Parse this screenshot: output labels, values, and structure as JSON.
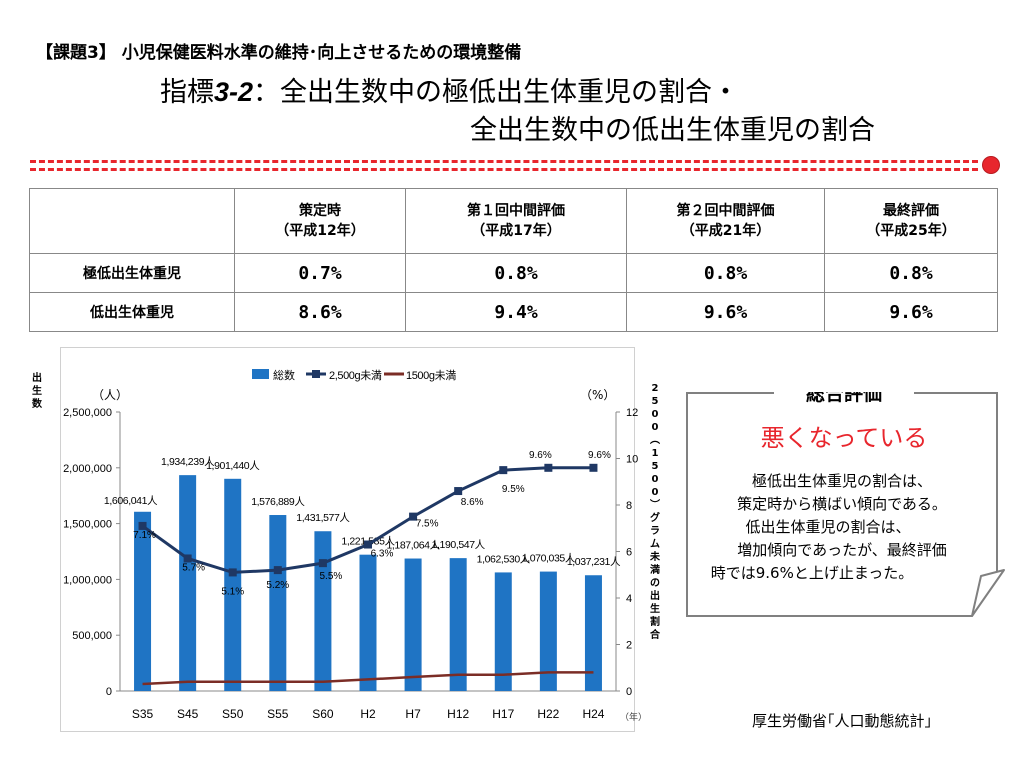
{
  "header": {
    "subtitle": "【課題3】 小児保健医料水準の維持･向上させるための環境整備",
    "title_prefix": "指標",
    "title_num": "3-2",
    "title_rest": "：全出生数中の極低出生体重児の割合・",
    "title_line2": "全出生数中の低出生体重児の割合"
  },
  "table": {
    "headers": [
      {
        "line1": "策定時",
        "line2": "（平成12年）"
      },
      {
        "line1": "第１回中間評価",
        "line2": "（平成17年）"
      },
      {
        "line1": "第２回中間評価",
        "line2": "（平成21年）"
      },
      {
        "line1": "最終評価",
        "line2": "（平成25年）"
      }
    ],
    "rows": [
      {
        "label": "極低出生体重児",
        "values": [
          "0.7%",
          "0.8%",
          "0.8%",
          "0.8%"
        ]
      },
      {
        "label": "低出生体重児",
        "values": [
          "8.6%",
          "9.4%",
          "9.6%",
          "9.6%"
        ]
      }
    ]
  },
  "chart_data": {
    "type": "bar",
    "categories": [
      "S35",
      "S45",
      "S50",
      "S55",
      "S60",
      "H2",
      "H7",
      "H12",
      "H17",
      "H22",
      "H24"
    ],
    "x_unit": "（年）",
    "y_left": {
      "label": "出生数",
      "unit": "（人）",
      "ticks": [
        "0",
        "500,000",
        "1,000,000",
        "1,500,000",
        "2,000,000",
        "2,500,000"
      ],
      "lim": [
        0,
        2500000
      ]
    },
    "y_right": {
      "label": "2500（1500）グラム未満の出生割合",
      "unit": "（%）",
      "ticks": [
        "0",
        "2",
        "4",
        "6",
        "8",
        "10",
        "12"
      ],
      "lim": [
        0,
        12
      ]
    },
    "legend": [
      "総数",
      "2,500g未満",
      "1500g未満"
    ],
    "series": [
      {
        "name": "総数",
        "type": "bar",
        "axis": "left",
        "color": "#1f74c4",
        "values": [
          1606041,
          1934239,
          1901440,
          1576889,
          1431577,
          1221585,
          1187064,
          1190547,
          1062530,
          1070035,
          1037231
        ],
        "labels": [
          "1,606,041人",
          "1,934,239人",
          "1,901,440人",
          "1,576,889人",
          "1,431,577人",
          "1,221,585人",
          "1,187,064人",
          "1,190,547人",
          "1,062,530人",
          "1,070,035人",
          "1,037,231人"
        ]
      },
      {
        "name": "2,500g未満",
        "type": "line",
        "axis": "right",
        "color": "#1f3864",
        "values": [
          7.1,
          5.7,
          5.1,
          5.2,
          5.5,
          6.3,
          7.5,
          8.6,
          9.5,
          9.6,
          9.6
        ],
        "labels": [
          "7.1%",
          "5.7%",
          "5.1%",
          "5.2%",
          "5.5%",
          "6.3%",
          "7.5%",
          "8.6%",
          "9.5%",
          "9.6%",
          "9.6%"
        ]
      },
      {
        "name": "1500g未満",
        "type": "line",
        "axis": "right",
        "color": "#7b2d26",
        "values": [
          0.3,
          0.4,
          0.4,
          0.4,
          0.4,
          0.5,
          0.6,
          0.7,
          0.7,
          0.8,
          0.8
        ]
      }
    ]
  },
  "summary": {
    "title": "総合評価",
    "verdict": "悪くなっている",
    "lines": [
      "極低出生体重児の割合は、",
      "策定時から横ばい傾向である。",
      "低出生体重児の割合は、",
      "増加傾向であったが、最終評価",
      "時では9.6%と上げ止まった。"
    ],
    "verdict_color": "#e8262d"
  },
  "source": "厚生労働省｢人口動態統計｣"
}
